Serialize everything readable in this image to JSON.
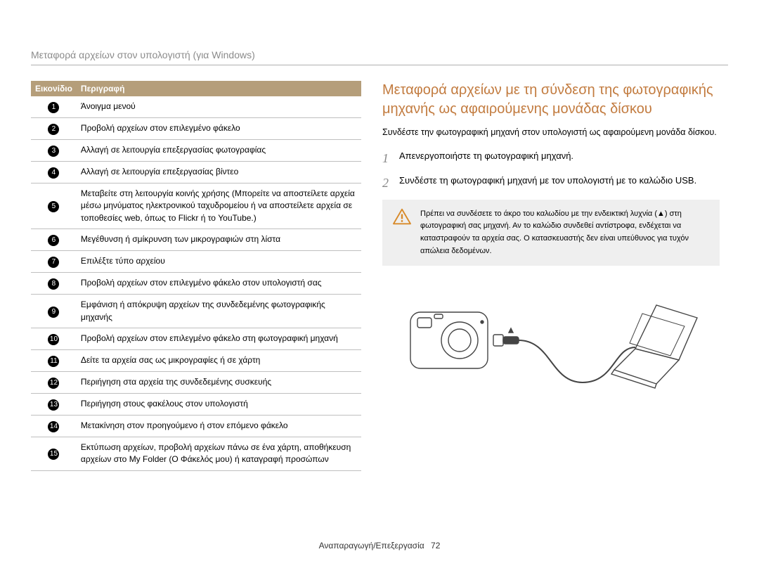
{
  "header": {
    "title": "Μεταφορά αρχείων στον υπολογιστή (για Windows)"
  },
  "table": {
    "head": {
      "col1": "Εικονίδιο",
      "col2": "Περιγραφή"
    },
    "rows": [
      {
        "n": "1",
        "desc": "Άνοιγμα μενού"
      },
      {
        "n": "2",
        "desc": "Προβολή αρχείων στον επιλεγμένο φάκελο"
      },
      {
        "n": "3",
        "desc": "Αλλαγή σε λειτουργία επεξεργασίας φωτογραφίας"
      },
      {
        "n": "4",
        "desc": "Αλλαγή σε λειτουργία επεξεργασίας βίντεο"
      },
      {
        "n": "5",
        "desc": "Μεταβείτε στη λειτουργία κοινής χρήσης (Μπορείτε να αποστείλετε αρχεία μέσω μηνύματος ηλεκτρονικού ταχυδρομείου ή να αποστείλετε αρχεία σε τοποθεσίες web, όπως το Flickr ή το YouTube.)"
      },
      {
        "n": "6",
        "desc": "Μεγέθυνση ή σμίκρυνση των μικρογραφιών στη λίστα"
      },
      {
        "n": "7",
        "desc": "Επιλέξτε τύπο αρχείου"
      },
      {
        "n": "8",
        "desc": "Προβολή αρχείων στον επιλεγμένο φάκελο στον υπολογιστή σας"
      },
      {
        "n": "9",
        "desc": "Εμφάνιση ή απόκρυψη αρχείων της συνδεδεμένης φωτογραφικής μηχανής"
      },
      {
        "n": "10",
        "desc": "Προβολή αρχείων στον επιλεγμένο φάκελο στη φωτογραφική μηχανή"
      },
      {
        "n": "11",
        "desc": "Δείτε τα αρχεία σας ως μικρογραφίες ή σε χάρτη"
      },
      {
        "n": "12",
        "desc": "Περιήγηση στα αρχεία της συνδεδεμένης συσκευής"
      },
      {
        "n": "13",
        "desc": "Περιήγηση στους φακέλους στον υπολογιστή"
      },
      {
        "n": "14",
        "desc": "Μετακίνηση στον προηγούμενο ή στον επόμενο φάκελο"
      },
      {
        "n": "15",
        "desc": "Εκτύπωση αρχείων, προβολή αρχείων πάνω σε ένα χάρτη, αποθήκευση αρχείων στο My Folder (Ο Φάκελός μου) ή καταγραφή προσώπων"
      }
    ],
    "header_bg": "#b59e7a",
    "border_color": "#bfbfbf"
  },
  "right": {
    "title": "Μεταφορά αρχείων με τη σύνδεση της φωτογραφικής μηχανής ως αφαιρούμενης μονάδας δίσκου",
    "title_color": "#c27b3f",
    "intro": "Συνδέστε την φωτογραφική μηχανή στον υπολογιστή ως αφαιρούμενη μονάδα δίσκου.",
    "steps": [
      {
        "n": "1",
        "text": "Απενεργοποιήστε τη φωτογραφική μηχανή."
      },
      {
        "n": "2",
        "text": "Συνδέστε τη φωτογραφική μηχανή με τον υπολογιστή με το καλώδιο USB."
      }
    ],
    "warning": {
      "icon_name": "warning-triangle-icon",
      "icon_color": "#d88a2a",
      "text": "Πρέπει να συνδέσετε το άκρο του καλωδίου με την ενδεικτική λυχνία (▲) στη φωτογραφική σας μηχανή. Αν το καλώδιο συνδεθεί αντίστροφα, ενδέχεται να καταστραφούν τα αρχεία σας. Ο κατασκευαστής δεν είναι υπεύθυνος για τυχόν απώλεια δεδομένων.",
      "bg": "#efefef"
    }
  },
  "footer": {
    "section": "Αναπαραγωγή/Επεξεργασία",
    "page": "72"
  }
}
